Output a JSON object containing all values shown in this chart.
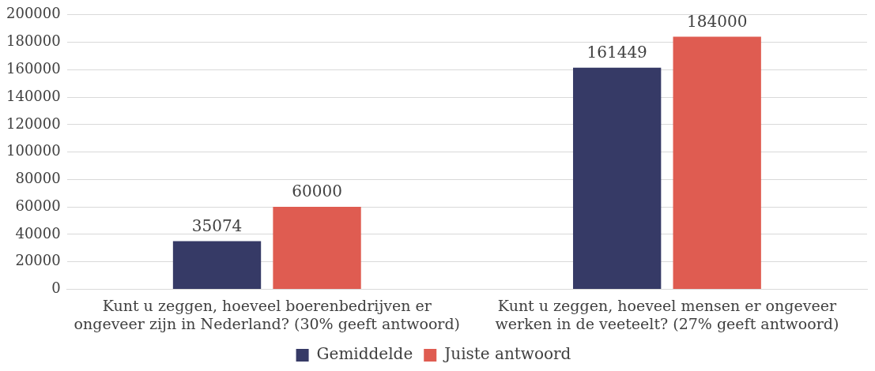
{
  "chart_data": {
    "type": "bar",
    "categories": [
      "Kunt u zeggen, hoeveel boerenbedrijven er ongeveer zijn in Nederland? (30% geeft antwoord)",
      "Kunt u zeggen, hoeveel mensen er ongeveer werken in de veeteelt? (27% geeft antwoord)"
    ],
    "series": [
      {
        "name": "Gemiddelde",
        "color": "#363a66",
        "values": [
          35074,
          161449
        ]
      },
      {
        "name": "Juiste antwoord",
        "color": "#df5c51",
        "values": [
          60000,
          184000
        ]
      }
    ],
    "ylim": [
      0,
      200000
    ],
    "yticks": [
      0,
      20000,
      40000,
      60000,
      80000,
      100000,
      120000,
      140000,
      160000,
      180000,
      200000
    ],
    "grid": "y",
    "legend": "bottom",
    "data_labels": true
  }
}
